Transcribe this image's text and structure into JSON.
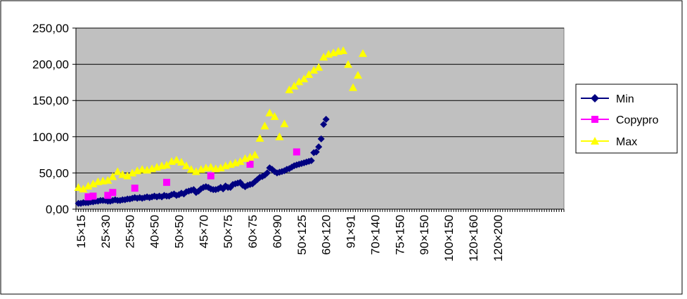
{
  "chart_data": {
    "type": "scatter",
    "ylim": [
      0,
      250
    ],
    "y_ticks": [
      "0,00",
      "50,00",
      "100,00",
      "150,00",
      "200,00",
      "250,00"
    ],
    "grid": "horizontal",
    "plot_background": "#C0C0C0",
    "legend_position": "right",
    "x_index_range": [
      0,
      199
    ],
    "x_tick_labels": [
      {
        "i": 2,
        "label": "15×15"
      },
      {
        "i": 12,
        "label": "25×30"
      },
      {
        "i": 22,
        "label": "25×50"
      },
      {
        "i": 32,
        "label": "40×50"
      },
      {
        "i": 42,
        "label": "50×50"
      },
      {
        "i": 52,
        "label": "45×70"
      },
      {
        "i": 62,
        "label": "50×75"
      },
      {
        "i": 72,
        "label": "60×75"
      },
      {
        "i": 82,
        "label": "60×90"
      },
      {
        "i": 92,
        "label": "50×125"
      },
      {
        "i": 102,
        "label": "60×120"
      },
      {
        "i": 112,
        "label": "91×91"
      },
      {
        "i": 122,
        "label": "70×140"
      },
      {
        "i": 132,
        "label": "75×150"
      },
      {
        "i": 142,
        "label": "90×150"
      },
      {
        "i": 152,
        "label": "100×150"
      },
      {
        "i": 162,
        "label": "120×160"
      },
      {
        "i": 172,
        "label": "120×200"
      }
    ],
    "series": [
      {
        "name": "Min",
        "color": "#000080",
        "marker": "diamond",
        "points": [
          [
            1,
            8
          ],
          [
            2,
            8
          ],
          [
            3,
            9
          ],
          [
            4,
            9
          ],
          [
            5,
            9
          ],
          [
            6,
            10
          ],
          [
            7,
            10
          ],
          [
            8,
            11
          ],
          [
            9,
            11
          ],
          [
            10,
            12
          ],
          [
            11,
            12
          ],
          [
            12,
            12
          ],
          [
            13,
            11
          ],
          [
            14,
            11
          ],
          [
            15,
            12
          ],
          [
            16,
            13
          ],
          [
            17,
            12
          ],
          [
            18,
            12
          ],
          [
            19,
            13
          ],
          [
            20,
            13
          ],
          [
            21,
            14
          ],
          [
            22,
            14
          ],
          [
            23,
            15
          ],
          [
            24,
            16
          ],
          [
            25,
            15
          ],
          [
            26,
            16
          ],
          [
            27,
            15
          ],
          [
            28,
            16
          ],
          [
            29,
            17
          ],
          [
            30,
            16
          ],
          [
            31,
            17
          ],
          [
            32,
            18
          ],
          [
            33,
            17
          ],
          [
            34,
            18
          ],
          [
            35,
            17
          ],
          [
            36,
            19
          ],
          [
            37,
            18
          ],
          [
            38,
            18
          ],
          [
            39,
            20
          ],
          [
            40,
            21
          ],
          [
            41,
            19
          ],
          [
            42,
            20
          ],
          [
            43,
            22
          ],
          [
            44,
            21
          ],
          [
            45,
            24
          ],
          [
            46,
            25
          ],
          [
            47,
            26
          ],
          [
            48,
            27
          ],
          [
            49,
            23
          ],
          [
            50,
            25
          ],
          [
            51,
            28
          ],
          [
            52,
            30
          ],
          [
            53,
            31
          ],
          [
            54,
            30
          ],
          [
            55,
            28
          ],
          [
            56,
            27
          ],
          [
            57,
            27
          ],
          [
            58,
            28
          ],
          [
            59,
            30
          ],
          [
            60,
            28
          ],
          [
            61,
            32
          ],
          [
            62,
            30
          ],
          [
            63,
            30
          ],
          [
            64,
            34
          ],
          [
            65,
            35
          ],
          [
            66,
            36
          ],
          [
            67,
            37
          ],
          [
            68,
            33
          ],
          [
            69,
            31
          ],
          [
            70,
            33
          ],
          [
            71,
            34
          ],
          [
            72,
            35
          ],
          [
            73,
            38
          ],
          [
            74,
            41
          ],
          [
            75,
            44
          ],
          [
            76,
            45
          ],
          [
            77,
            47
          ],
          [
            78,
            50
          ],
          [
            79,
            57
          ],
          [
            80,
            55
          ],
          [
            81,
            52
          ],
          [
            82,
            50
          ],
          [
            83,
            51
          ],
          [
            84,
            52
          ],
          [
            85,
            53
          ],
          [
            86,
            55
          ],
          [
            87,
            56
          ],
          [
            88,
            58
          ],
          [
            89,
            60
          ],
          [
            90,
            61
          ],
          [
            91,
            62
          ],
          [
            92,
            63
          ],
          [
            93,
            64
          ],
          [
            94,
            65
          ],
          [
            95,
            66
          ],
          [
            96,
            67
          ],
          [
            97,
            78
          ],
          [
            98,
            79
          ],
          [
            99,
            86
          ],
          [
            100,
            97
          ],
          [
            101,
            117
          ],
          [
            102,
            124
          ]
        ]
      },
      {
        "name": "Copypro",
        "color": "#FF00FF",
        "marker": "square",
        "points": [
          [
            5,
            17
          ],
          [
            7,
            18
          ],
          [
            13,
            19
          ],
          [
            15,
            23
          ],
          [
            24,
            29
          ],
          [
            37,
            37
          ],
          [
            55,
            46
          ],
          [
            71,
            62
          ],
          [
            90,
            79
          ]
        ]
      },
      {
        "name": "Max",
        "color": "#FFFF00",
        "marker": "triangle",
        "points": [
          [
            1,
            30
          ],
          [
            3,
            28
          ],
          [
            5,
            32
          ],
          [
            7,
            35
          ],
          [
            9,
            38
          ],
          [
            11,
            39
          ],
          [
            13,
            40
          ],
          [
            15,
            45
          ],
          [
            17,
            52
          ],
          [
            19,
            48
          ],
          [
            21,
            46
          ],
          [
            23,
            50
          ],
          [
            25,
            53
          ],
          [
            27,
            55
          ],
          [
            29,
            54
          ],
          [
            31,
            56
          ],
          [
            33,
            58
          ],
          [
            35,
            60
          ],
          [
            37,
            61
          ],
          [
            39,
            66
          ],
          [
            41,
            68
          ],
          [
            43,
            65
          ],
          [
            45,
            60
          ],
          [
            47,
            55
          ],
          [
            49,
            52
          ],
          [
            51,
            55
          ],
          [
            53,
            57
          ],
          [
            55,
            58
          ],
          [
            57,
            56
          ],
          [
            59,
            57
          ],
          [
            61,
            60
          ],
          [
            63,
            62
          ],
          [
            65,
            64
          ],
          [
            67,
            66
          ],
          [
            69,
            70
          ],
          [
            71,
            72
          ],
          [
            73,
            75
          ],
          [
            75,
            98
          ],
          [
            77,
            115
          ],
          [
            79,
            133
          ],
          [
            81,
            128
          ],
          [
            83,
            100
          ],
          [
            85,
            118
          ],
          [
            87,
            165
          ],
          [
            89,
            170
          ],
          [
            91,
            176
          ],
          [
            93,
            180
          ],
          [
            95,
            186
          ],
          [
            97,
            192
          ],
          [
            99,
            196
          ],
          [
            101,
            210
          ],
          [
            103,
            214
          ],
          [
            105,
            216
          ],
          [
            107,
            218
          ],
          [
            109,
            219
          ],
          [
            111,
            200
          ],
          [
            113,
            168
          ],
          [
            115,
            185
          ],
          [
            117,
            215
          ]
        ]
      }
    ]
  }
}
